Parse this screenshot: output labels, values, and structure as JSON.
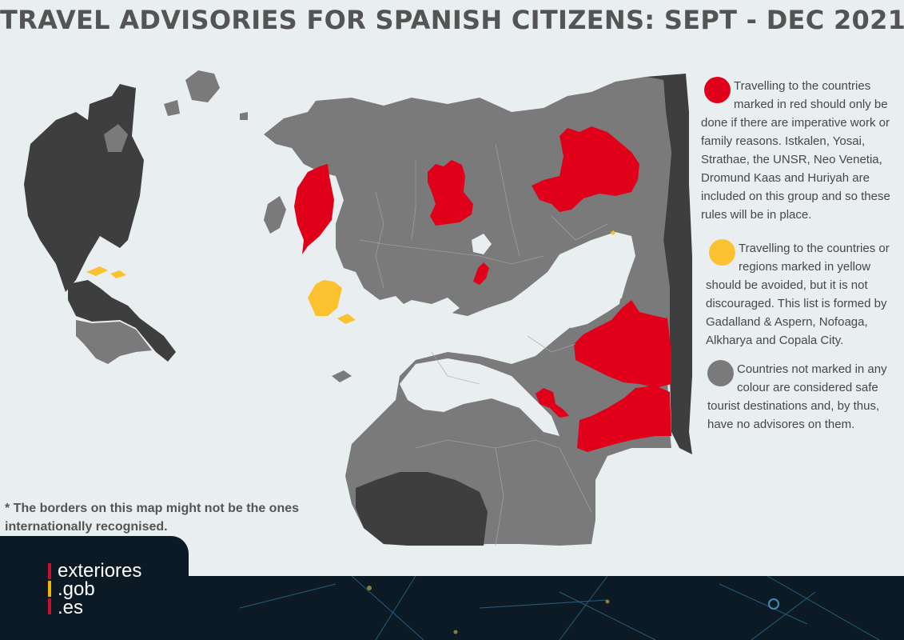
{
  "title": "TRAVEL ADVISORIES FOR SPANISH CITIZENS: SEPT - DEC 2021",
  "colors": {
    "red": "#e0001a",
    "yellow": "#fcc12f",
    "grey": "#7a7a7a",
    "dark": "#3e3e3e",
    "sea": "#e9eef0",
    "footer": "#0c1a26",
    "logo_red": "#c8102e",
    "logo_yellow": "#f4b500"
  },
  "legend": [
    {
      "color": "red",
      "text": "Travelling to the countries marked in red should only be done if there are imperative work or family reasons. Istkalen, Yosai, Strathae, the UNSR, Neo Venetia, Dromund Kaas and Huriyah are included on this group and so these rules will be in place."
    },
    {
      "color": "yellow",
      "text": "Travelling to the countries or regions marked in yellow should be avoided, but it is not discouraged. This list is formed by Gadalland & Aspern, Nofoaga, Alkharya and Copala City."
    },
    {
      "color": "grey",
      "text": "Countries not marked in any colour are considered safe tourist destinations and, by thus, have no advisores on them."
    }
  ],
  "footnote": "* The borders on this map might not be the ones internationally recognised.",
  "logo": {
    "line1": "exteriores",
    "line2": ".gob",
    "line3": ".es"
  }
}
